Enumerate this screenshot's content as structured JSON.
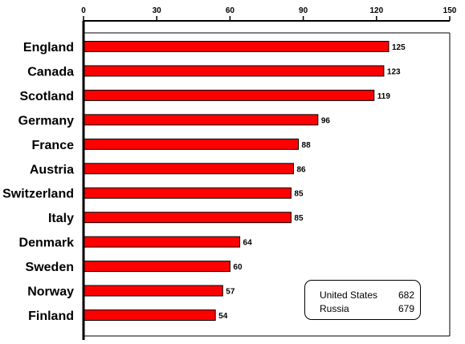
{
  "chart_data": {
    "type": "bar",
    "orientation": "horizontal",
    "categories": [
      "England",
      "Canada",
      "Scotland",
      "Germany",
      "France",
      "Austria",
      "Switzerland",
      "Italy",
      "Denmark",
      "Sweden",
      "Norway",
      "Finland"
    ],
    "values": [
      125,
      123,
      119,
      96,
      88,
      86,
      85,
      85,
      64,
      60,
      57,
      54
    ],
    "xlim": [
      0,
      150
    ],
    "x_ticks": [
      0,
      30,
      60,
      90,
      120,
      150
    ],
    "x_axis_position": "top",
    "bar_color": "#ff0000",
    "bar_outline_color": "#000000",
    "grid": false,
    "title": "",
    "xlabel": "",
    "ylabel": ""
  },
  "note": {
    "rows": [
      {
        "name": "United States",
        "value": "682"
      },
      {
        "name": "Russia",
        "value": "679"
      }
    ]
  }
}
